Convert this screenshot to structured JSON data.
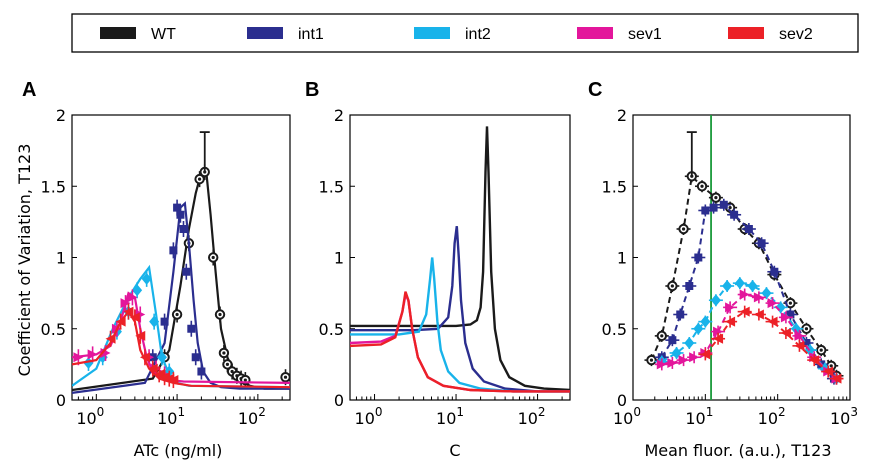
{
  "legend": [
    {
      "name": "WT",
      "color": "#1a1a1a"
    },
    {
      "name": "int1",
      "color": "#2b2e8f"
    },
    {
      "name": "int2",
      "color": "#18b3ea"
    },
    {
      "name": "sev1",
      "color": "#e3169b"
    },
    {
      "name": "sev2",
      "color": "#ec2127"
    }
  ],
  "chart_data": [
    {
      "type": "line",
      "panel": "A",
      "title": "",
      "xlabel": "ATc (ng/ml)",
      "ylabel": "Coefficient of Variation, T123",
      "xscale": "log",
      "xlim": [
        0.5,
        250
      ],
      "ylim": [
        0,
        2
      ],
      "xticks": [
        "10^0",
        "10^1",
        "10^2"
      ],
      "yticks": [
        "0",
        "0.5",
        "1",
        "1.5",
        "2"
      ],
      "series": [
        {
          "name": "WT",
          "color": "#1a1a1a",
          "points_x": [
            7,
            10,
            14,
            19,
            22,
            28,
            34,
            38,
            42,
            48,
            55,
            62,
            70,
            220
          ],
          "points_y": [
            0.3,
            0.6,
            1.1,
            1.55,
            1.6,
            1.0,
            0.6,
            0.33,
            0.25,
            0.2,
            0.17,
            0.15,
            0.14,
            0.16
          ],
          "fit_x": [
            0.5,
            5,
            8,
            11,
            14,
            17,
            20,
            23,
            26,
            30,
            35,
            42,
            55,
            80,
            120,
            250
          ],
          "fit_y": [
            0.07,
            0.15,
            0.35,
            0.8,
            1.2,
            1.45,
            1.6,
            1.6,
            1.3,
            0.9,
            0.5,
            0.3,
            0.15,
            0.1,
            0.08,
            0.08
          ]
        },
        {
          "name": "int1",
          "color": "#2b2e8f",
          "points_x": [
            5,
            7,
            9,
            10,
            11,
            12,
            13,
            15,
            17,
            20
          ],
          "points_y": [
            0.3,
            0.55,
            1.05,
            1.35,
            1.3,
            1.2,
            0.9,
            0.5,
            0.3,
            0.2
          ],
          "fit_x": [
            0.5,
            4,
            7,
            9,
            11,
            12.5,
            14,
            16,
            18,
            21,
            26,
            35,
            60,
            250
          ],
          "fit_y": [
            0.05,
            0.12,
            0.4,
            0.9,
            1.35,
            1.38,
            1.1,
            0.7,
            0.4,
            0.2,
            0.12,
            0.09,
            0.08,
            0.08
          ]
        },
        {
          "name": "int2",
          "color": "#18b3ea",
          "points_x": [
            0.8,
            1.2,
            1.8,
            2.5,
            3.2,
            4.2,
            5.2,
            6.5,
            8
          ],
          "points_y": [
            0.26,
            0.3,
            0.48,
            0.62,
            0.77,
            0.85,
            0.55,
            0.3,
            0.2
          ],
          "fit_x": [
            0.5,
            1,
            1.6,
            2.5,
            3.5,
            4.5,
            5.5,
            6.5,
            8,
            10,
            14,
            250
          ],
          "fit_y": [
            0.1,
            0.22,
            0.5,
            0.72,
            0.85,
            0.93,
            0.6,
            0.3,
            0.18,
            0.12,
            0.1,
            0.09
          ]
        },
        {
          "name": "sev1",
          "color": "#e3169b",
          "points_x": [
            0.6,
            0.9,
            1.3,
            1.8,
            2.3,
            2.8,
            3.5,
            4.5,
            5.5,
            7
          ],
          "points_y": [
            0.3,
            0.32,
            0.33,
            0.5,
            0.68,
            0.72,
            0.6,
            0.3,
            0.22,
            0.18
          ],
          "fit_x": [
            0.5,
            1,
            1.5,
            2,
            2.5,
            3,
            3.5,
            4.2,
            5,
            6,
            8,
            12,
            250
          ],
          "fit_y": [
            0.3,
            0.32,
            0.38,
            0.55,
            0.75,
            0.72,
            0.5,
            0.3,
            0.2,
            0.17,
            0.14,
            0.13,
            0.12
          ]
        },
        {
          "name": "sev2",
          "color": "#ec2127",
          "points_x": [
            1.5,
            2,
            2.5,
            3,
            3.5,
            4,
            5,
            6,
            7,
            8,
            9
          ],
          "points_y": [
            0.43,
            0.55,
            0.62,
            0.58,
            0.45,
            0.3,
            0.22,
            0.18,
            0.16,
            0.15,
            0.14
          ],
          "fit_x": [
            0.5,
            1,
            1.5,
            2,
            2.5,
            3,
            3.5,
            4.5,
            6,
            9,
            15,
            250
          ],
          "fit_y": [
            0.25,
            0.28,
            0.4,
            0.55,
            0.62,
            0.55,
            0.35,
            0.22,
            0.15,
            0.12,
            0.1,
            0.09
          ]
        }
      ]
    },
    {
      "type": "line",
      "panel": "B",
      "title": "",
      "xlabel": "C",
      "ylabel": "",
      "xscale": "log",
      "xlim": [
        0.5,
        250
      ],
      "ylim": [
        0,
        2
      ],
      "xticks": [
        "10^0",
        "10^1",
        "10^2"
      ],
      "yticks": [
        "0",
        "0.5",
        "1",
        "1.5",
        "2"
      ],
      "series": [
        {
          "name": "WT",
          "color": "#1a1a1a",
          "x": [
            0.5,
            5,
            10,
            15,
            18,
            20,
            21.5,
            23,
            24,
            25,
            27,
            30,
            35,
            45,
            70,
            120,
            250
          ],
          "y": [
            0.52,
            0.52,
            0.52,
            0.53,
            0.56,
            0.65,
            0.9,
            1.6,
            1.92,
            1.6,
            0.9,
            0.5,
            0.28,
            0.16,
            0.1,
            0.08,
            0.07
          ]
        },
        {
          "name": "int1",
          "color": "#2b2e8f",
          "x": [
            0.5,
            3,
            6,
            8,
            9,
            9.6,
            10.2,
            10.8,
            11.5,
            13,
            16,
            22,
            40,
            100,
            250
          ],
          "y": [
            0.49,
            0.49,
            0.5,
            0.58,
            0.8,
            1.1,
            1.22,
            1.0,
            0.7,
            0.4,
            0.22,
            0.13,
            0.08,
            0.06,
            0.06
          ]
        },
        {
          "name": "int2",
          "color": "#18b3ea",
          "x": [
            0.5,
            2,
            3.5,
            4.3,
            4.8,
            5.1,
            5.4,
            5.9,
            6.5,
            8,
            11,
            20,
            50,
            250
          ],
          "y": [
            0.46,
            0.46,
            0.48,
            0.6,
            0.85,
            1.0,
            0.85,
            0.55,
            0.35,
            0.2,
            0.12,
            0.08,
            0.06,
            0.06
          ]
        },
        {
          "name": "sev1",
          "color": "#e3169b",
          "x": [
            0.5,
            1.2,
            1.8,
            2.2,
            2.4,
            2.6,
            2.9,
            3.4,
            4.5,
            7,
            15,
            50,
            250
          ],
          "y": [
            0.4,
            0.41,
            0.45,
            0.62,
            0.74,
            0.7,
            0.5,
            0.3,
            0.16,
            0.1,
            0.07,
            0.06,
            0.06
          ]
        },
        {
          "name": "sev2",
          "color": "#ec2127",
          "x": [
            0.5,
            1.2,
            1.8,
            2.2,
            2.4,
            2.6,
            2.9,
            3.4,
            4.5,
            7,
            15,
            50,
            250
          ],
          "y": [
            0.38,
            0.39,
            0.44,
            0.62,
            0.76,
            0.7,
            0.5,
            0.3,
            0.16,
            0.1,
            0.07,
            0.06,
            0.06
          ]
        }
      ]
    },
    {
      "type": "line",
      "panel": "C",
      "title": "",
      "xlabel": "Mean fluor. (a.u.), T123",
      "ylabel": "",
      "xscale": "log",
      "xlim": [
        1,
        1000
      ],
      "ylim": [
        0,
        2
      ],
      "xticks": [
        "10^0",
        "10^1",
        "10^2",
        "10^3"
      ],
      "yticks": [
        "0",
        "0.5",
        "1",
        "1.5",
        "2"
      ],
      "vline": {
        "x": 12,
        "color": "#1a9a3a"
      },
      "series": [
        {
          "name": "WT",
          "color": "#1a1a1a",
          "x": [
            1.8,
            2.5,
            3.5,
            5,
            6.5,
            9,
            14,
            22,
            35,
            55,
            90,
            150,
            250,
            400,
            550,
            650
          ],
          "y": [
            0.28,
            0.45,
            0.8,
            1.2,
            1.57,
            1.5,
            1.42,
            1.35,
            1.2,
            1.1,
            0.88,
            0.68,
            0.5,
            0.35,
            0.24,
            0.17
          ]
        },
        {
          "name": "int1",
          "color": "#2b2e8f",
          "x": [
            2.5,
            3.5,
            4.5,
            6,
            8,
            10,
            13,
            18,
            25,
            40,
            60,
            90,
            150,
            250,
            400,
            600
          ],
          "y": [
            0.3,
            0.42,
            0.6,
            0.8,
            1.0,
            1.33,
            1.35,
            1.37,
            1.3,
            1.2,
            1.1,
            0.9,
            0.6,
            0.4,
            0.25,
            0.15
          ]
        },
        {
          "name": "int2",
          "color": "#18b3ea",
          "x": [
            2.5,
            4,
            6,
            8,
            10,
            14,
            20,
            30,
            45,
            70,
            110,
            180,
            280,
            450,
            650
          ],
          "y": [
            0.27,
            0.33,
            0.4,
            0.5,
            0.55,
            0.7,
            0.8,
            0.82,
            0.8,
            0.75,
            0.65,
            0.5,
            0.35,
            0.22,
            0.15
          ]
        },
        {
          "name": "sev1",
          "color": "#e3169b",
          "x": [
            2.5,
            3.5,
            5,
            7,
            10,
            15,
            22,
            35,
            55,
            85,
            130,
            200,
            320,
            500,
            650
          ],
          "y": [
            0.25,
            0.26,
            0.28,
            0.3,
            0.33,
            0.48,
            0.65,
            0.74,
            0.72,
            0.68,
            0.58,
            0.45,
            0.3,
            0.2,
            0.15
          ]
        },
        {
          "name": "sev2",
          "color": "#ec2127",
          "x": [
            10,
            15,
            22,
            35,
            55,
            85,
            130,
            200,
            320,
            500,
            650
          ],
          "y": [
            0.32,
            0.43,
            0.55,
            0.62,
            0.6,
            0.55,
            0.47,
            0.38,
            0.28,
            0.2,
            0.15
          ]
        }
      ]
    }
  ]
}
